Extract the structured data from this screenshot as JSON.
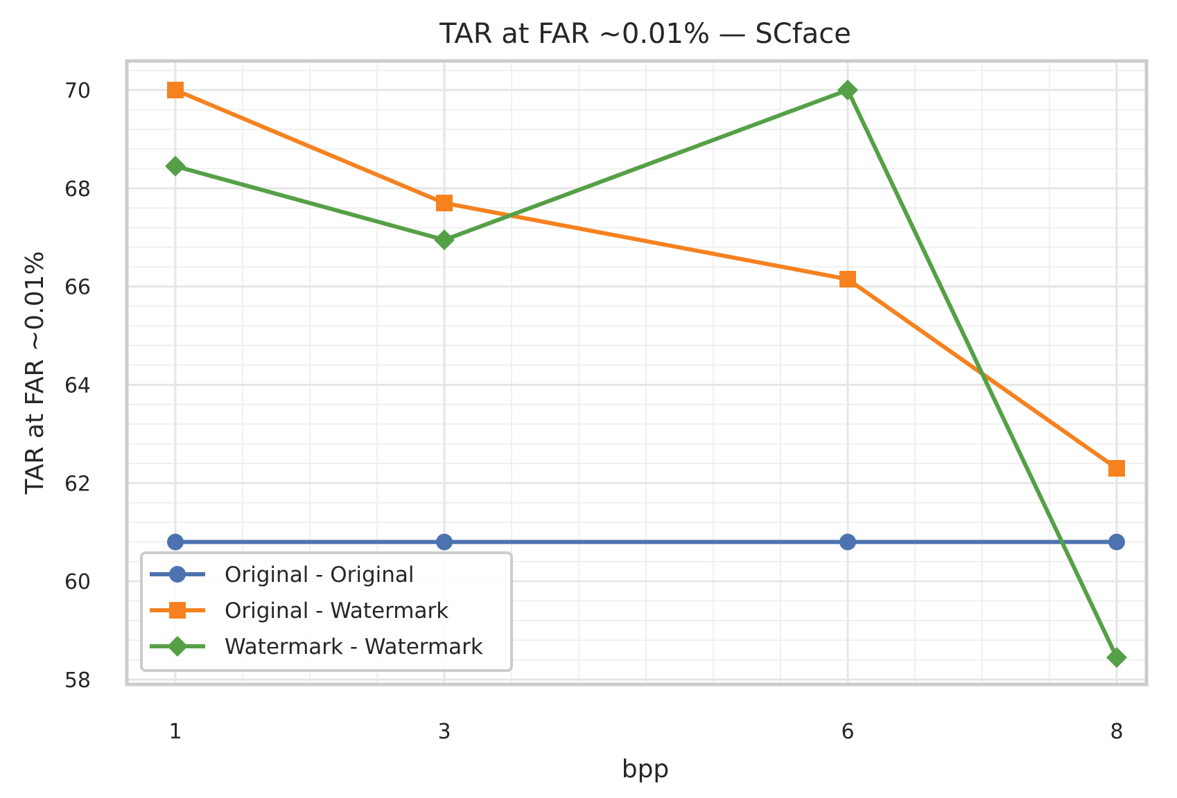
{
  "chart_data": {
    "type": "line",
    "title": "TAR at FAR ~0.01% — SCface",
    "xlabel": "bpp",
    "ylabel": "TAR at FAR ~0.01%",
    "x": [
      1,
      3,
      6,
      8
    ],
    "x_ticks": [
      "1",
      "3",
      "6",
      "8"
    ],
    "xlim": [
      0.5,
      8.15
    ],
    "ylim": [
      58,
      70.6
    ],
    "y_ticks": [
      58,
      60,
      62,
      64,
      66,
      68,
      70
    ],
    "grid": true,
    "minor_grid": true,
    "legend_position": "lower-left",
    "series": [
      {
        "name": "Original - Original",
        "values": [
          60.8,
          60.8,
          60.8,
          60.8
        ],
        "color": "#4c72b0",
        "marker": "circle"
      },
      {
        "name": "Original - Watermark",
        "values": [
          70.0,
          67.7,
          66.15,
          62.3
        ],
        "color": "#f5821f",
        "marker": "square"
      },
      {
        "name": "Watermark - Watermark",
        "values": [
          68.45,
          66.95,
          70.0,
          58.45
        ],
        "color": "#55a047",
        "marker": "diamond"
      }
    ]
  }
}
